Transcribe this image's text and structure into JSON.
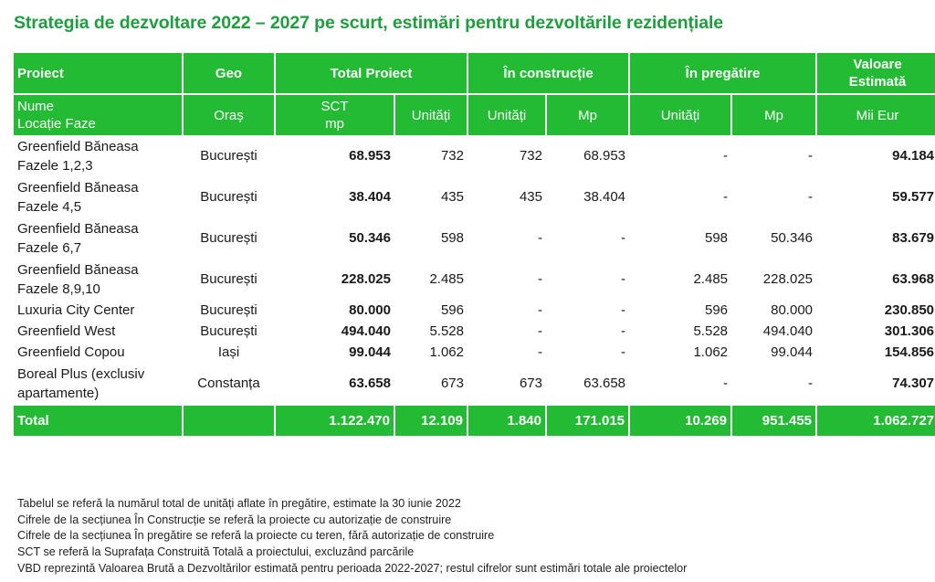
{
  "title": "Strategia de dezvoltare 2022 – 2027 pe scurt, estimări pentru dezvoltările rezidențiale",
  "header": {
    "proiect": "Proiect",
    "geo": "Geo",
    "total_proiect": "Total Proiect",
    "in_constructie": "În construcție",
    "in_pregatire": "În pregătire",
    "valoare_estimata_l1": "Valoare",
    "valoare_estimata_l2": "Estimată"
  },
  "subheader": {
    "nume_l1": "Nume",
    "nume_l2": "Locație Faze",
    "oras": "Oraș",
    "sct_l1": "SCT",
    "sct_l2": "mp",
    "unitati_total": "Unități",
    "unitati_constr": "Unități",
    "mp_constr": "Mp",
    "unitati_preg": "Unități",
    "mp_preg": "Mp",
    "mii_eur": "Mii Eur"
  },
  "rows": [
    {
      "name_l1": "Greenfield Băneasa",
      "name_l2": "Fazele 1,2,3",
      "geo": "București",
      "sct": "68.953",
      "units": "732",
      "c_units": "732",
      "c_mp": "68.953",
      "p_units": "-",
      "p_mp": "-",
      "value": "94.184"
    },
    {
      "name_l1": "Greenfield Băneasa",
      "name_l2": "Fazele 4,5",
      "geo": "București",
      "sct": "38.404",
      "units": "435",
      "c_units": "435",
      "c_mp": "38.404",
      "p_units": "-",
      "p_mp": "-",
      "value": "59.577"
    },
    {
      "name_l1": "Greenfield Băneasa",
      "name_l2": "Fazele 6,7",
      "geo": "București",
      "sct": "50.346",
      "units": "598",
      "c_units": "-",
      "c_mp": "-",
      "p_units": "598",
      "p_mp": "50.346",
      "value": "83.679"
    },
    {
      "name_l1": "Greenfield Băneasa",
      "name_l2": "Fazele 8,9,10",
      "geo": "București",
      "sct": "228.025",
      "units": "2.485",
      "c_units": "-",
      "c_mp": "-",
      "p_units": "2.485",
      "p_mp": "228.025",
      "value": "63.968"
    },
    {
      "name_l1": "Luxuria City Center",
      "name_l2": "",
      "geo": "București",
      "sct": "80.000",
      "units": "596",
      "c_units": "-",
      "c_mp": "-",
      "p_units": "596",
      "p_mp": "80.000",
      "value": "230.850"
    },
    {
      "name_l1": "Greenfield West",
      "name_l2": "",
      "geo": "București",
      "sct": "494.040",
      "units": "5.528",
      "c_units": "-",
      "c_mp": "-",
      "p_units": "5.528",
      "p_mp": "494.040",
      "value": "301.306"
    },
    {
      "name_l1": "Greenfield Copou",
      "name_l2": "",
      "geo": "Iași",
      "sct": "99.044",
      "units": "1.062",
      "c_units": "-",
      "c_mp": "-",
      "p_units": "1.062",
      "p_mp": "99.044",
      "value": "154.856"
    },
    {
      "name_l1": "Boreal Plus (exclusiv",
      "name_l2": "apartamente)",
      "geo": "Constanța",
      "sct": "63.658",
      "units": "673",
      "c_units": "673",
      "c_mp": "63.658",
      "p_units": "-",
      "p_mp": "-",
      "value": "74.307"
    }
  ],
  "total": {
    "label": "Total",
    "sct": "1.122.470",
    "units": "12.109",
    "c_units": "1.840",
    "c_mp": "171.015",
    "p_units": "10.269",
    "p_mp": "951.455",
    "value": "1.062.727"
  },
  "notes": [
    "Tabelul se referă la numărul total de unități aflate în pregătire, estimate la 30 iunie 2022",
    "Cifrele de la secțiunea În Construcție se referă la proiecte cu autorizație de construire",
    "Cifrele de la secțiunea În pregătire se referă la proiecte cu teren, fără autorizație de construire",
    "SCT se referă la Suprafața Construită Totală a proiectului, excluzând parcările",
    "VBD reprezintă Valoarea Brută a Dezvoltărilor estimată pentru perioada 2022-2027; restul cifrelor sunt estimări totale ale proiectelor"
  ],
  "colors": {
    "accent_green": "#22bb33",
    "title_green": "#1e9e3e"
  }
}
